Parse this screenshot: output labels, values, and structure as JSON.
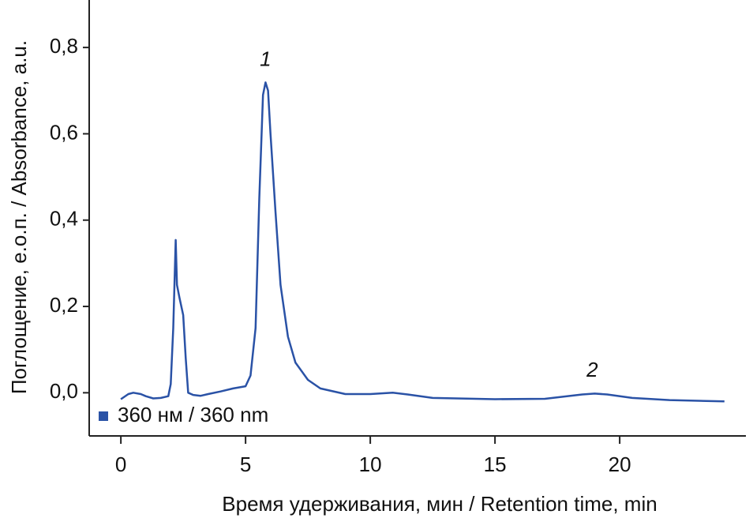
{
  "chart_data": {
    "type": "line",
    "x_label": "Время удерживания, мин / Retention time, min",
    "y_label": "Поглощение, е.о.п. / Absorbance, a.u.",
    "xlim": [
      -1.27,
      25.06
    ],
    "ylim": [
      -0.1,
      0.91
    ],
    "xticks": [
      0,
      5,
      10,
      15,
      20
    ],
    "yticks": [
      {
        "value": 0,
        "label": "0,0"
      },
      {
        "value": 0.2,
        "label": "0,2"
      },
      {
        "value": 0.4,
        "label": "0,4"
      },
      {
        "value": 0.6,
        "label": "0,6"
      },
      {
        "value": 0.8,
        "label": "0,8"
      }
    ],
    "legend": "lower left",
    "series": [
      {
        "name": "360 нм / 360 nm",
        "color": "#2a52a6",
        "x": [
          0,
          0.3,
          0.5,
          0.8,
          1.0,
          1.3,
          1.6,
          1.9,
          2.0,
          2.1,
          2.2,
          2.25,
          2.35,
          2.5,
          2.6,
          2.7,
          2.9,
          3.2,
          3.5,
          4.0,
          4.5,
          5.0,
          5.2,
          5.4,
          5.55,
          5.7,
          5.8,
          5.9,
          6.0,
          6.2,
          6.4,
          6.7,
          7.0,
          7.5,
          8.0,
          9.0,
          10.0,
          10.9,
          11.5,
          12.5,
          15.0,
          17.0,
          18.5,
          19.0,
          19.5,
          20.5,
          22.0,
          24.2
        ],
        "values": [
          -0.015,
          -0.003,
          0.0,
          -0.003,
          -0.008,
          -0.013,
          -0.012,
          -0.008,
          0.02,
          0.15,
          0.354,
          0.25,
          0.22,
          0.18,
          0.08,
          0.0,
          -0.005,
          -0.007,
          -0.003,
          0.003,
          0.01,
          0.015,
          0.04,
          0.15,
          0.45,
          0.69,
          0.719,
          0.7,
          0.6,
          0.42,
          0.25,
          0.13,
          0.07,
          0.03,
          0.01,
          -0.003,
          -0.003,
          0.0,
          -0.004,
          -0.012,
          -0.015,
          -0.014,
          -0.004,
          -0.002,
          -0.004,
          -0.012,
          -0.017,
          -0.02
        ]
      }
    ],
    "annotations": [
      {
        "text": "1",
        "x": 5.8,
        "y": 0.77
      },
      {
        "text": "2",
        "x": 18.9,
        "y": 0.05
      }
    ]
  }
}
